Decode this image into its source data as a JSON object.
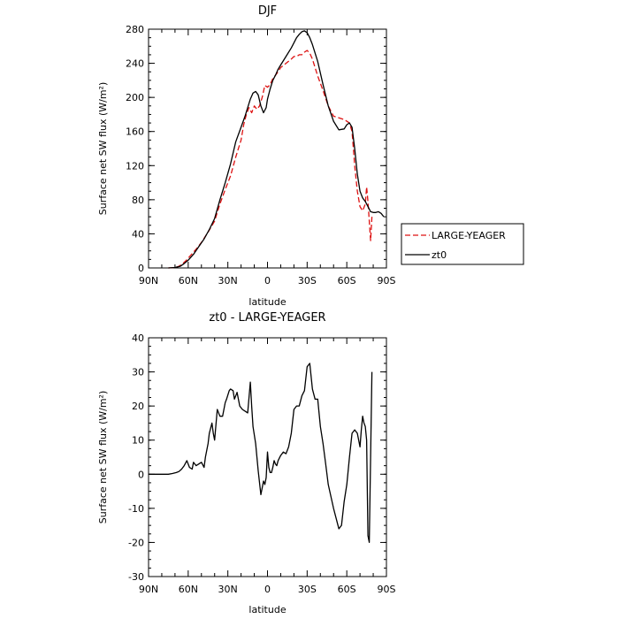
{
  "chart_data": [
    {
      "type": "line",
      "title": "DJF",
      "xlabel": "latitude",
      "ylabel": "Surface net SW flux (W/m²)",
      "xlim": [
        90,
        -90
      ],
      "ylim": [
        0,
        280
      ],
      "x_ticks": [
        90,
        60,
        30,
        0,
        -30,
        -60,
        -90
      ],
      "x_tick_labels": [
        "90N",
        "60N",
        "30N",
        "0",
        "30S",
        "60S",
        "90S"
      ],
      "y_ticks": [
        0,
        40,
        80,
        120,
        160,
        200,
        240,
        280
      ],
      "y_tick_labels": [
        "0",
        "40",
        "80",
        "120",
        "160",
        "200",
        "240",
        "280"
      ],
      "legend": {
        "placement": "right",
        "entries": [
          "LARGE-YEAGER",
          "zt0"
        ]
      },
      "series": [
        {
          "name": "LARGE-YEAGER",
          "color": "#dd1111",
          "dash": "dashed",
          "x": [
            75,
            70,
            67,
            65,
            62,
            58,
            54,
            50,
            45,
            40,
            36,
            32,
            28,
            24,
            20,
            18,
            16,
            14,
            12,
            10,
            8,
            6,
            4,
            2,
            0,
            -2,
            -4,
            -6,
            -8,
            -10,
            -14,
            -18,
            -20,
            -22,
            -24,
            -26,
            -28,
            -30,
            -32,
            -34,
            -38,
            -42,
            -46,
            -50,
            -54,
            -58,
            -62,
            -64,
            -66,
            -68,
            -70,
            -72,
            -74,
            -75,
            -76,
            -77,
            -78,
            -79
          ],
          "y": [
            0,
            0.5,
            2,
            4,
            8,
            15,
            22,
            30,
            42,
            55,
            75,
            92,
            108,
            130,
            150,
            168,
            180,
            188,
            182,
            190,
            186,
            190,
            200,
            214,
            212,
            215,
            222,
            226,
            230,
            235,
            240,
            245,
            248,
            248,
            250,
            250,
            253,
            255,
            252,
            245,
            225,
            208,
            190,
            178,
            176,
            174,
            170,
            160,
            120,
            90,
            72,
            67,
            75,
            95,
            78,
            55,
            32,
            60
          ]
        },
        {
          "name": "zt0",
          "color": "#000000",
          "dash": "solid",
          "x": [
            75,
            70,
            66,
            64,
            60,
            56,
            52,
            48,
            44,
            40,
            36,
            32,
            28,
            24,
            20,
            17,
            15,
            13,
            11,
            9,
            7,
            5,
            3,
            1,
            0,
            -2,
            -4,
            -6,
            -8,
            -10,
            -14,
            -18,
            -20,
            -22,
            -24,
            -26,
            -28,
            -30,
            -32,
            -34,
            -38,
            -42,
            -46,
            -50,
            -54,
            -58,
            -60,
            -62,
            -64,
            -66,
            -68,
            -70,
            -72,
            -74,
            -76,
            -78,
            -80,
            -82,
            -84,
            -86,
            -88
          ],
          "y": [
            0,
            0.5,
            2,
            4,
            9,
            16,
            25,
            34,
            45,
            58,
            80,
            100,
            122,
            148,
            165,
            178,
            188,
            198,
            205,
            207,
            203,
            190,
            182,
            188,
            198,
            210,
            220,
            226,
            233,
            238,
            248,
            258,
            264,
            270,
            274,
            277,
            278,
            276,
            270,
            262,
            242,
            215,
            190,
            172,
            162,
            163,
            168,
            170,
            165,
            140,
            110,
            90,
            82,
            78,
            72,
            66,
            65,
            65,
            66,
            64,
            60
          ]
        }
      ]
    },
    {
      "type": "line",
      "title": "zt0 - LARGE-YEAGER",
      "xlabel": "latitude",
      "ylabel": "Surface net SW flux (W/m²)",
      "xlim": [
        90,
        -90
      ],
      "ylim": [
        -30,
        40
      ],
      "x_ticks": [
        90,
        60,
        30,
        0,
        -30,
        -60,
        -90
      ],
      "x_tick_labels": [
        "90N",
        "60N",
        "30N",
        "0",
        "30S",
        "60S",
        "90S"
      ],
      "y_ticks": [
        -30,
        -20,
        -10,
        0,
        10,
        20,
        30,
        40
      ],
      "y_tick_labels": [
        "-30",
        "-20",
        "-10",
        "0",
        "10",
        "20",
        "30",
        "40"
      ],
      "series": [
        {
          "color": "#000000",
          "dash": "solid",
          "x": [
            90,
            80,
            75,
            72,
            69,
            67,
            65,
            63,
            61,
            59,
            57,
            56,
            54,
            52,
            50,
            48,
            47,
            45,
            44,
            42,
            41,
            40,
            38,
            36,
            34,
            32,
            31,
            29,
            28,
            26,
            25,
            23,
            21,
            19,
            17,
            15,
            13,
            12,
            11,
            9,
            7,
            5,
            3,
            2,
            1,
            0,
            -1,
            -2,
            -3,
            -4,
            -5,
            -6,
            -7,
            -8,
            -10,
            -12,
            -14,
            -16,
            -18,
            -20,
            -22,
            -24,
            -26,
            -28,
            -30,
            -32,
            -34,
            -36,
            -38,
            -40,
            -42,
            -44,
            -46,
            -48,
            -50,
            -52,
            -54,
            -56,
            -58,
            -60,
            -62,
            -64,
            -66,
            -68,
            -70,
            -71,
            -72,
            -73,
            -74,
            -75,
            -76,
            -77,
            -78,
            -79
          ],
          "y": [
            0,
            0,
            0,
            0.2,
            0.5,
            0.8,
            1.5,
            2.5,
            4,
            2,
            1.5,
            3.5,
            2.5,
            3,
            3.5,
            2,
            5,
            9,
            12,
            15,
            12,
            10,
            19,
            17,
            17,
            21,
            22,
            24.5,
            25,
            24.5,
            22,
            24,
            20,
            19,
            18.5,
            18,
            27,
            20,
            14,
            9,
            1,
            -6,
            -2,
            -3,
            -1,
            6.5,
            2,
            0.5,
            0.5,
            2,
            4,
            3,
            2.5,
            4,
            5.5,
            6.5,
            6,
            8,
            12,
            19,
            20,
            20,
            23,
            24.5,
            31.5,
            32.5,
            25,
            22,
            22,
            14,
            9,
            3,
            -3,
            -6.5,
            -10,
            -13,
            -16,
            -15,
            -8,
            -3,
            5,
            12,
            13,
            12,
            8,
            13,
            17,
            15,
            14,
            10,
            -18,
            -20,
            5,
            30
          ]
        }
      ]
    }
  ]
}
